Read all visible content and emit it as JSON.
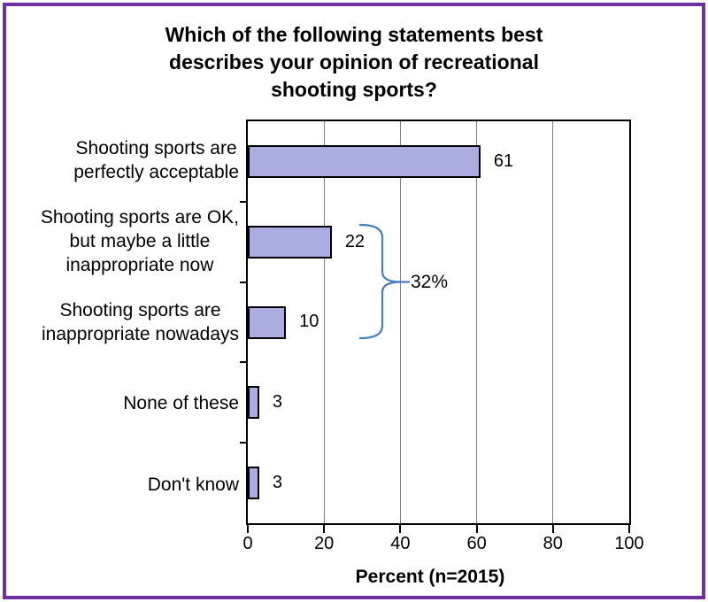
{
  "figure": {
    "border_color": "#7030A0",
    "background_color": "#FFFFFF"
  },
  "title": {
    "text": "Which of the following statements best describes your opinion of recreational shooting sports?",
    "lines": [
      "Which of the following statements best",
      "describes your opinion of recreational",
      "shooting sports?"
    ]
  },
  "chart_data": {
    "type": "bar",
    "orientation": "horizontal",
    "title": "Which of the following statements best describes your opinion of recreational shooting sports?",
    "categories": [
      "Shooting sports are perfectly acceptable",
      "Shooting sports are OK, but maybe a little inappropriate now",
      "Shooting sports are inappropriate nowadays",
      "None of these",
      "Don't know"
    ],
    "category_label_lines": [
      [
        "Shooting sports are",
        "perfectly acceptable"
      ],
      [
        "Shooting sports are OK,",
        "but maybe a little",
        "inappropriate now"
      ],
      [
        "Shooting sports are",
        "inappropriate nowadays"
      ],
      [
        "None of these"
      ],
      [
        "Don't know"
      ]
    ],
    "values": [
      61,
      22,
      10,
      3,
      3
    ],
    "data_labels": [
      "61",
      "22",
      "10",
      "3",
      "3"
    ],
    "xlabel": "Percent (n=2015)",
    "xlim": [
      0,
      100
    ],
    "xticks": [
      0,
      20,
      40,
      60,
      80,
      100
    ],
    "grid": true,
    "legend": false,
    "annotation": {
      "text": "32%",
      "covers_categories": [
        "Shooting sports are OK, but maybe a little inappropriate now",
        "Shooting sports are inappropriate nowadays"
      ],
      "sum_of_values": 32
    },
    "colors": {
      "bar_fill": "#ABACE0",
      "bar_border": "#000000",
      "gridline": "#808080",
      "axis_frame": "#000000",
      "brace": "#4A7EBE",
      "text": "#000000"
    }
  }
}
